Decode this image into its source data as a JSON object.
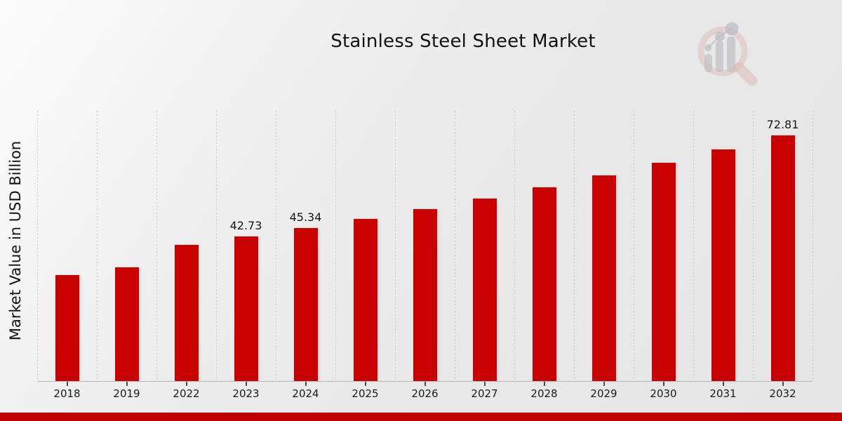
{
  "branding": {
    "logo_icon": "magnifier-bar-chart-icon",
    "ring_color": "#dcbdbd",
    "glyph_color": "#babbbf"
  },
  "footer": {
    "band_color": "#c00000"
  },
  "chart_data": {
    "type": "bar",
    "title": "Stainless Steel Sheet Market",
    "ylabel": "Market Value in USD Billion",
    "xlabel": "",
    "categories": [
      "2018",
      "2019",
      "2022",
      "2023",
      "2024",
      "2025",
      "2026",
      "2027",
      "2028",
      "2029",
      "2030",
      "2031",
      "2032"
    ],
    "values": [
      31.4,
      33.7,
      40.3,
      42.73,
      45.34,
      48.1,
      51.0,
      54.1,
      57.4,
      60.9,
      64.6,
      68.5,
      72.81
    ],
    "value_labels": [
      null,
      null,
      null,
      "42.73",
      "45.34",
      null,
      null,
      null,
      null,
      null,
      null,
      null,
      "72.81"
    ],
    "ylim": [
      0,
      80
    ],
    "bar_color": "#c80000",
    "grid": "vertical-dashed",
    "legend": "none",
    "axis_color": "#b5b5b5",
    "text_color": "#1a1a1a"
  }
}
